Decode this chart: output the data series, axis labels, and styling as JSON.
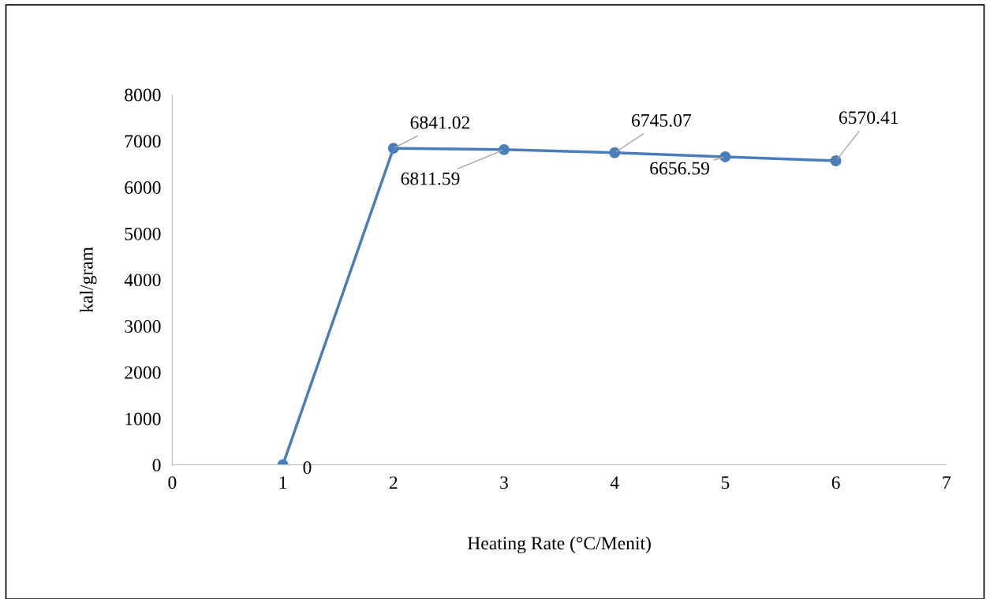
{
  "chart_data": {
    "type": "line",
    "xlabel": "Heating Rate (°C/Menit)",
    "ylabel": "kal/gram",
    "x": [
      1,
      2,
      3,
      4,
      5,
      6
    ],
    "series": [
      {
        "color": "#4a7ebb",
        "values": [
          0,
          6841.02,
          6811.59,
          6745.07,
          6656.59,
          6570.41
        ]
      }
    ],
    "xlim": [
      0,
      7
    ],
    "xticks": [
      0,
      1,
      2,
      3,
      4,
      5,
      6,
      7
    ],
    "ylim": [
      0,
      8000
    ],
    "yticks": [
      0,
      1000,
      2000,
      3000,
      4000,
      5000,
      6000,
      7000,
      8000
    ],
    "grid": false,
    "legend": false,
    "marker": "circle",
    "line_style": "solid",
    "data_labels": true
  }
}
